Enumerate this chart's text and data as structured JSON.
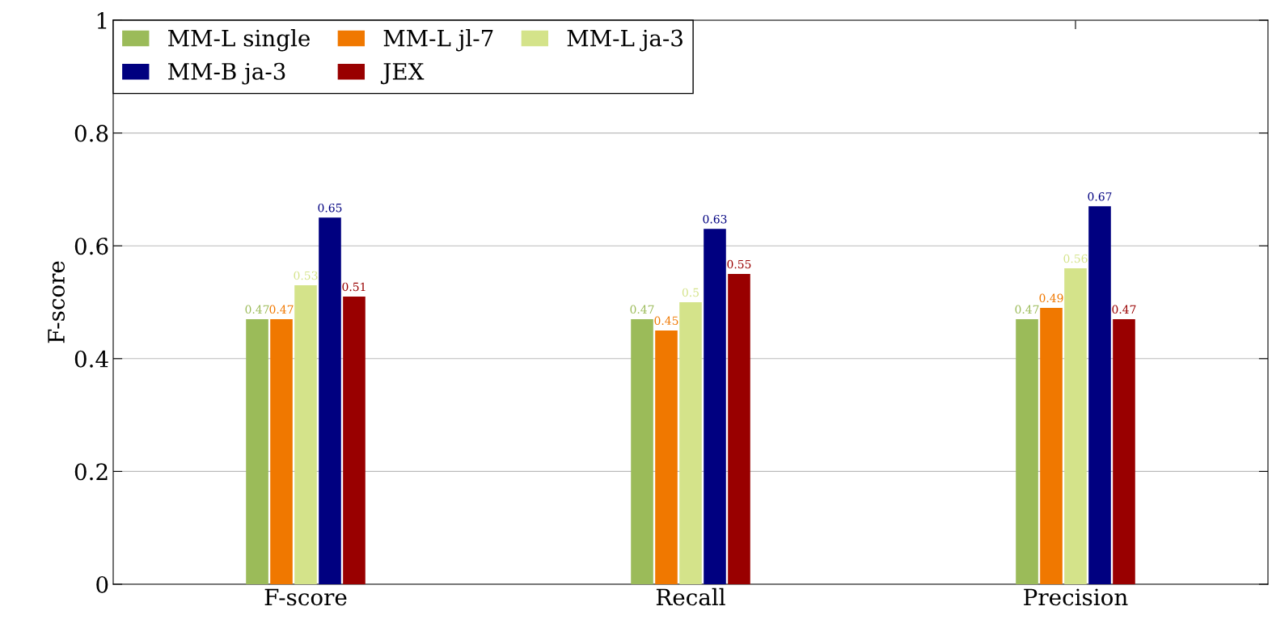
{
  "chart_data": {
    "type": "bar",
    "ylabel": "F-score",
    "categories": [
      "F-score",
      "Recall",
      "Precision"
    ],
    "series": [
      {
        "name": "MM-L single",
        "color": "#9bbb59",
        "values": [
          0.47,
          0.47,
          0.47
        ]
      },
      {
        "name": "MM-L jl-7",
        "color": "#f07800",
        "values": [
          0.47,
          0.45,
          0.49
        ]
      },
      {
        "name": "MM-L ja-3",
        "color": "#d4e38a",
        "values": [
          0.53,
          0.5,
          0.56
        ]
      },
      {
        "name": "MM-B ja-3",
        "color": "#000080",
        "values": [
          0.65,
          0.63,
          0.67
        ]
      },
      {
        "name": "JEX",
        "color": "#990000",
        "values": [
          0.51,
          0.55,
          0.47
        ]
      }
    ],
    "ylim": [
      0,
      1
    ],
    "yticks": [
      0,
      0.2,
      0.4,
      0.6,
      0.8,
      1
    ],
    "grid": "y",
    "legend": "top left",
    "data_labels": true
  }
}
